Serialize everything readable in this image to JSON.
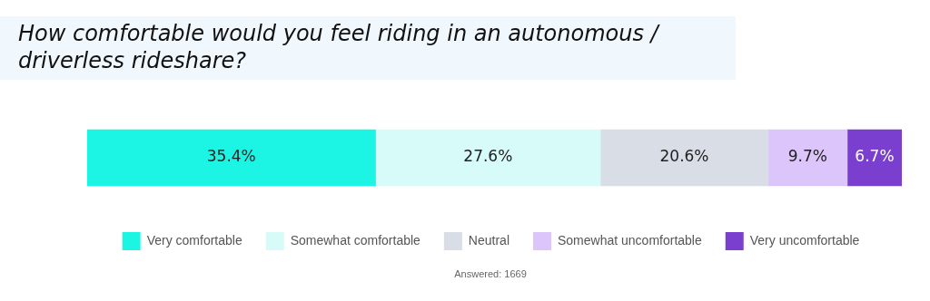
{
  "chart_data": {
    "type": "bar",
    "title": "How comfortable would you feel riding in an autonomous / driverless rideshare?",
    "categories": [
      null
    ],
    "orientation": "horizontal",
    "stacked": true,
    "tick_labels": false,
    "legend": "bottom",
    "annotations": [
      "Answered: 1669"
    ],
    "series": [
      {
        "name": "Very comfortable",
        "color": "#1df5e4",
        "values": [
          35.4
        ],
        "value_labels": [
          "35.4%"
        ]
      },
      {
        "name": "Somewhat comfortable",
        "color": "#d7fbf8",
        "values": [
          27.6
        ],
        "value_labels": [
          "27.6%"
        ]
      },
      {
        "name": "Neutral",
        "color": "#d9dee6",
        "values": [
          20.6
        ],
        "value_labels": [
          "20.6%"
        ]
      },
      {
        "name": "Somewhat uncomfortable",
        "color": "#dcc5fa",
        "values": [
          9.7
        ],
        "value_labels": [
          "9.7%"
        ]
      },
      {
        "name": "Very uncomfortable",
        "color": "#7a3fcf",
        "values": [
          6.7
        ],
        "value_labels": [
          "6.7%"
        ]
      }
    ]
  }
}
